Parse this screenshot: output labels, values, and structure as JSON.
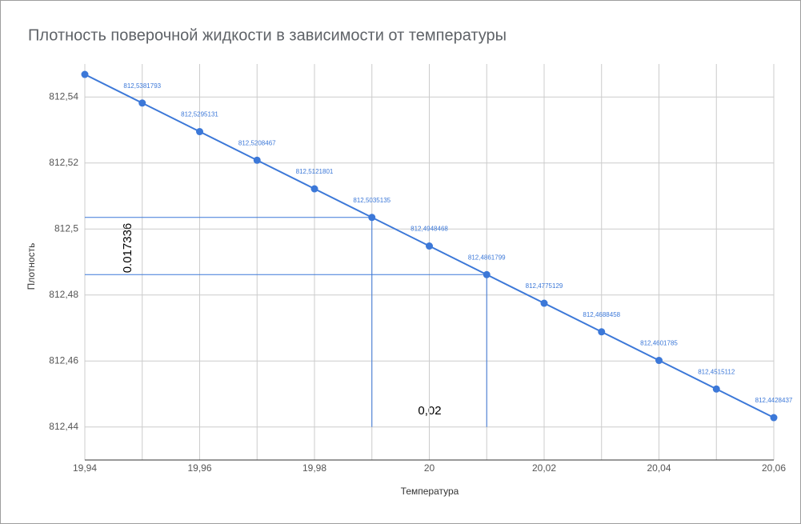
{
  "chart_data": {
    "type": "line",
    "title": "Плотность поверочной жидкости в зависимости от температуры",
    "x_label": "Температура",
    "y_label": "Плотность",
    "x": [
      19.94,
      19.95,
      19.96,
      19.97,
      19.98,
      19.99,
      20,
      20.01,
      20.02,
      20.03,
      20.04,
      20.05,
      20.06
    ],
    "series": [
      {
        "name": "Плотность",
        "color": "#3c78d8",
        "values": [
          812.5468453,
          812.5381793,
          812.5295131,
          812.5208467,
          812.5121801,
          812.5035135,
          812.4948468,
          812.4861799,
          812.4775129,
          812.4688458,
          812.4601785,
          812.4515112,
          812.4428437
        ],
        "value_labels": [
          null,
          "812,5381793",
          "812,5295131",
          "812,5208467",
          "812,5121801",
          "812,5035135",
          "812,4948468",
          "812,4861799",
          "812,4775129",
          "812,4688458",
          "812,4601785",
          "812,4515112",
          "812,4428437"
        ]
      }
    ],
    "xlim": [
      19.94,
      20.06
    ],
    "xticks": [
      {
        "value": 19.94,
        "label": "19,94"
      },
      {
        "value": 19.96,
        "label": "19,96"
      },
      {
        "value": 19.98,
        "label": "19,98"
      },
      20,
      {
        "value": 20.02,
        "label": "20,02"
      },
      {
        "value": 20.04,
        "label": "20,04"
      },
      {
        "value": 20.06,
        "label": "20,06"
      }
    ],
    "ylim": [
      812.43,
      812.55
    ],
    "yticks": [
      {
        "value": 812.44,
        "label": "812,44"
      },
      {
        "value": 812.46,
        "label": "812,46"
      },
      {
        "value": 812.48,
        "label": "812,48"
      },
      {
        "value": 812.5,
        "label": "812,5"
      },
      {
        "value": 812.52,
        "label": "812,52"
      },
      {
        "value": 812.54,
        "label": "812,54"
      }
    ],
    "grid": true,
    "guide_x": [
      19.99,
      20.01
    ],
    "annotations": [
      {
        "text": "0.017336"
      },
      {
        "text": "0,02"
      }
    ]
  }
}
